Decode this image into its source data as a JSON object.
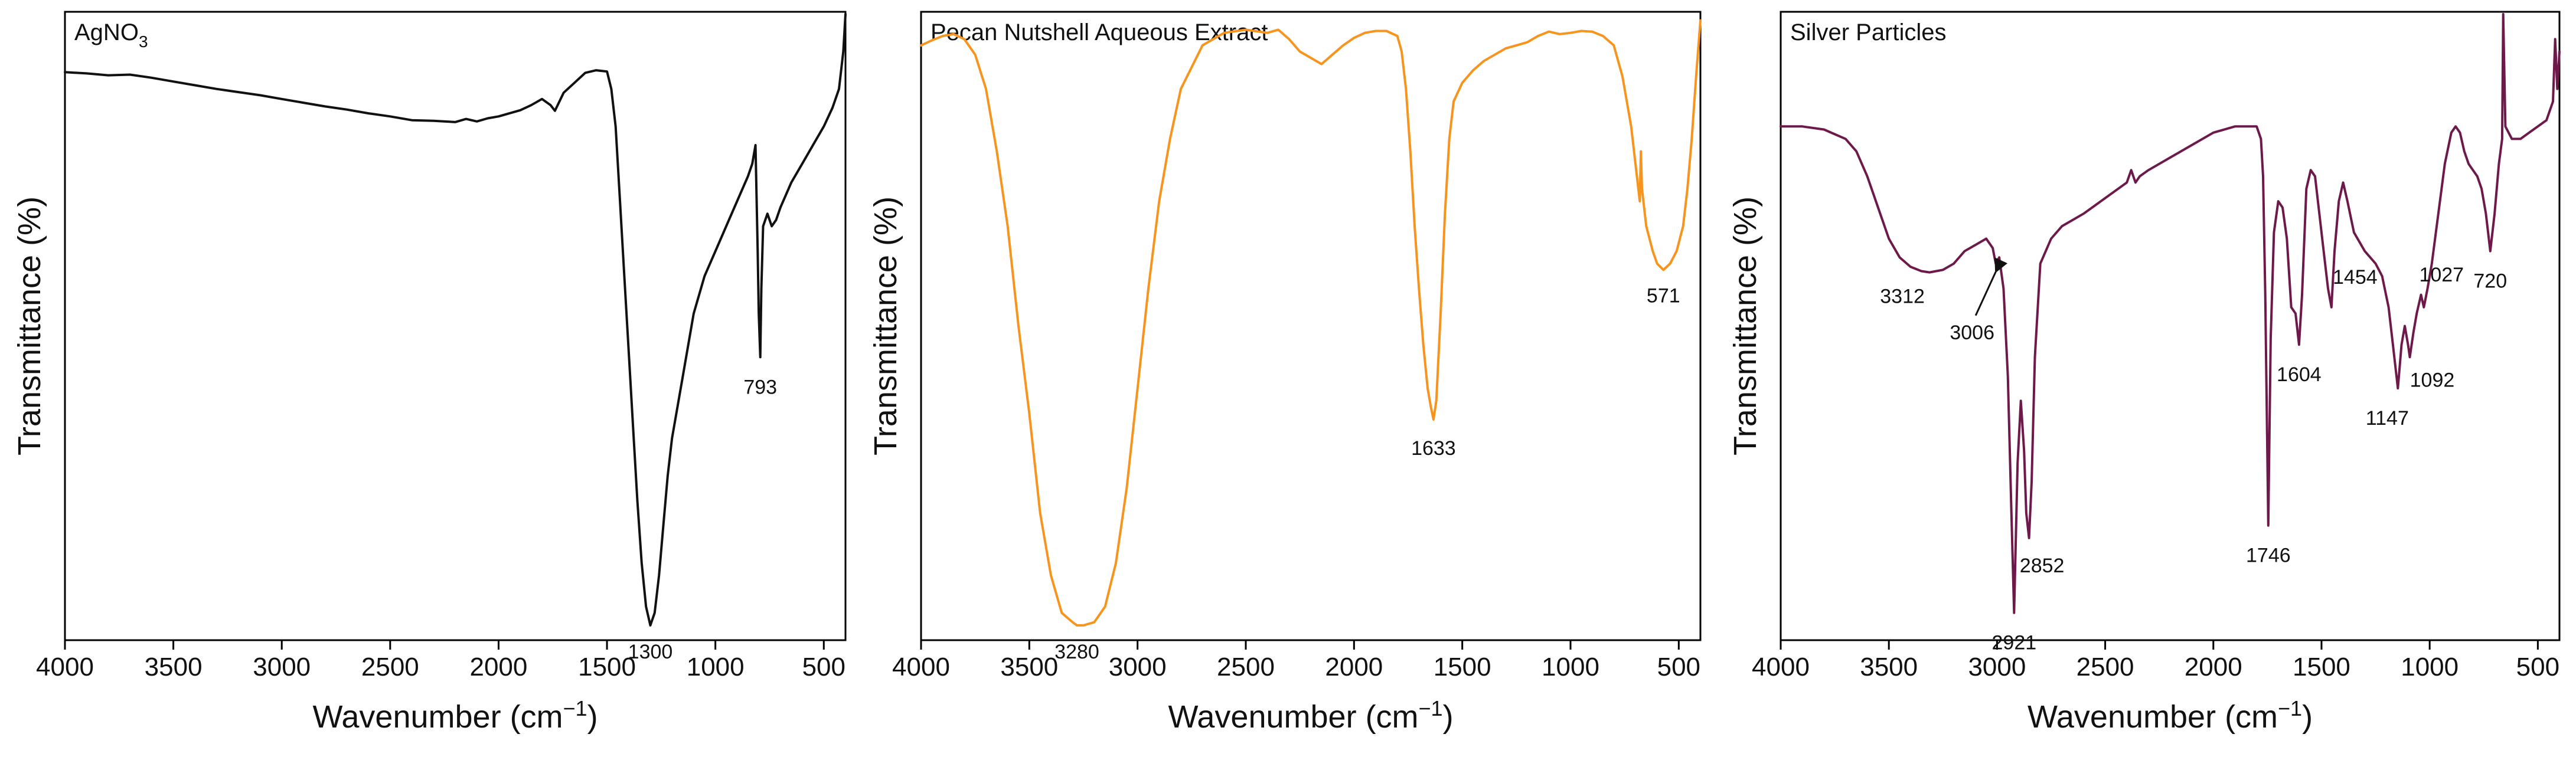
{
  "chart_data": [
    {
      "type": "line",
      "title": "AgNO3",
      "title_main": "AgNO",
      "title_sub": "3",
      "xlabel": "Wavenumber (cm−1)",
      "xlabel_main": "Wavenumber (cm",
      "xlabel_sup": "−1",
      "xlabel_close": ")",
      "ylabel": "Transmittance (%)",
      "xlim": [
        4000,
        400
      ],
      "ylim": [
        0,
        100
      ],
      "x_ticks": [
        4000,
        3500,
        3000,
        2500,
        2000,
        1500,
        1000,
        500
      ],
      "x_tick_labels": [
        "4000",
        "3500",
        "3000",
        "2500",
        "2000",
        "1500",
        "1000",
        "500"
      ],
      "color": "#111111",
      "series": [
        {
          "name": "AgNO3",
          "x": [
            4000,
            3900,
            3800,
            3700,
            3600,
            3500,
            3400,
            3300,
            3200,
            3100,
            3000,
            2900,
            2800,
            2700,
            2600,
            2500,
            2400,
            2300,
            2200,
            2150,
            2100,
            2050,
            2000,
            1950,
            1900,
            1850,
            1800,
            1760,
            1740,
            1700,
            1650,
            1600,
            1550,
            1500,
            1480,
            1460,
            1440,
            1420,
            1400,
            1380,
            1360,
            1340,
            1320,
            1300,
            1280,
            1260,
            1240,
            1220,
            1200,
            1150,
            1100,
            1050,
            1000,
            950,
            900,
            850,
            830,
            815,
            805,
            800,
            793,
            788,
            780,
            760,
            740,
            720,
            700,
            650,
            600,
            550,
            500,
            460,
            430,
            410,
            400
          ],
          "y": [
            90.7,
            90.5,
            90.2,
            90.3,
            89.8,
            89.2,
            88.6,
            88.0,
            87.5,
            87.0,
            86.4,
            85.8,
            85.2,
            84.7,
            84.1,
            83.6,
            83.0,
            82.9,
            82.7,
            83.2,
            82.8,
            83.3,
            83.6,
            84.1,
            84.6,
            85.4,
            86.4,
            85.4,
            84.5,
            87.4,
            89.0,
            90.6,
            91.0,
            90.8,
            88.0,
            82.0,
            70.0,
            58.0,
            46.0,
            34.0,
            22.0,
            12.0,
            5.0,
            2.0,
            4.0,
            10.0,
            18.0,
            26.0,
            32.0,
            42.0,
            52.0,
            58.0,
            62.0,
            66.0,
            70.0,
            74.0,
            76.0,
            79.0,
            62.0,
            52.0,
            45.0,
            56.0,
            66.0,
            68.0,
            66.0,
            67.0,
            69.0,
            73.0,
            76.0,
            79.0,
            82.0,
            85.0,
            88.0,
            94.0,
            100.0
          ]
        }
      ],
      "annotations": [
        {
          "label": "1300",
          "x": 1300,
          "y": 2.0
        },
        {
          "label": "793",
          "x": 793,
          "y": 45.0
        }
      ]
    },
    {
      "type": "line",
      "title": "Pecan Nutshell Aqueous Extract",
      "xlabel": "Wavenumber (cm−1)",
      "xlabel_main": "Wavenumber (cm",
      "xlabel_sup": "−1",
      "xlabel_close": ")",
      "ylabel": "Transmittance (%)",
      "xlim": [
        4000,
        400
      ],
      "ylim": [
        0,
        100
      ],
      "x_ticks": [
        4000,
        3500,
        3000,
        2500,
        2000,
        1500,
        1000,
        500
      ],
      "x_tick_labels": [
        "4000",
        "3500",
        "3000",
        "2500",
        "2000",
        "1500",
        "1000",
        "500"
      ],
      "color": "#F7941D",
      "series": [
        {
          "name": "Pecan Nutshell Aqueous Extract",
          "x": [
            4000,
            3950,
            3900,
            3850,
            3800,
            3750,
            3700,
            3650,
            3600,
            3550,
            3500,
            3450,
            3400,
            3350,
            3300,
            3280,
            3250,
            3200,
            3150,
            3100,
            3050,
            3000,
            2950,
            2900,
            2850,
            2800,
            2700,
            2600,
            2500,
            2400,
            2350,
            2300,
            2250,
            2200,
            2150,
            2100,
            2050,
            2000,
            1950,
            1900,
            1850,
            1800,
            1780,
            1760,
            1740,
            1720,
            1700,
            1680,
            1660,
            1645,
            1633,
            1620,
            1600,
            1580,
            1560,
            1540,
            1500,
            1450,
            1400,
            1350,
            1300,
            1250,
            1200,
            1150,
            1100,
            1050,
            1000,
            950,
            900,
            850,
            800,
            760,
            720,
            700,
            680,
            675,
            670,
            650,
            620,
            600,
            571,
            540,
            510,
            480,
            460,
            440,
            420,
            400
          ],
          "y": [
            95.0,
            95.8,
            96.5,
            96.8,
            96.0,
            93.5,
            88.0,
            78.0,
            66.0,
            50.0,
            36.0,
            20.0,
            10.0,
            4.0,
            2.5,
            2.0,
            2.0,
            2.5,
            5.0,
            12.0,
            24.0,
            40.0,
            56.0,
            70.0,
            80.0,
            88.0,
            95.0,
            97.0,
            97.5,
            97.0,
            97.5,
            96.0,
            94.0,
            93.0,
            92.0,
            93.5,
            95.0,
            96.2,
            97.0,
            97.3,
            97.3,
            96.5,
            94.0,
            88.0,
            78.0,
            66.0,
            56.0,
            47.0,
            40.0,
            37.0,
            35.0,
            38.0,
            52.0,
            68.0,
            80.0,
            86.0,
            89.0,
            91.0,
            92.5,
            93.5,
            94.5,
            95.0,
            95.5,
            96.5,
            97.2,
            96.8,
            97.0,
            97.3,
            97.2,
            96.5,
            95.0,
            90.0,
            82.0,
            76.0,
            70.0,
            78.0,
            72.0,
            66.0,
            62.0,
            60.0,
            59.0,
            60.0,
            62.0,
            66.0,
            72.0,
            80.0,
            90.0,
            99.0
          ]
        }
      ],
      "annotations": [
        {
          "label": "3280",
          "x": 3280,
          "y": 2.0
        },
        {
          "label": "1633",
          "x": 1633,
          "y": 35.0
        },
        {
          "label": "571",
          "x": 571,
          "y": 59.0
        }
      ]
    },
    {
      "type": "line",
      "title": "Silver Particles",
      "xlabel": "Wavenumber (cm−1)",
      "xlabel_main": "Wavenumber (cm",
      "xlabel_sup": "−1",
      "xlabel_close": ")",
      "ylabel": "Transmittance (%)",
      "xlim": [
        4000,
        400
      ],
      "ylim": [
        0,
        100
      ],
      "x_ticks": [
        4000,
        3500,
        3000,
        2500,
        2000,
        1500,
        1000,
        500
      ],
      "x_tick_labels": [
        "4000",
        "3500",
        "3000",
        "2500",
        "2000",
        "1500",
        "1000",
        "500"
      ],
      "color": "#6D1A4A",
      "series": [
        {
          "name": "Silver Particles",
          "x": [
            4000,
            3900,
            3800,
            3700,
            3650,
            3600,
            3550,
            3500,
            3450,
            3400,
            3350,
            3312,
            3250,
            3200,
            3150,
            3100,
            3050,
            3020,
            3006,
            2990,
            2970,
            2950,
            2935,
            2921,
            2905,
            2890,
            2875,
            2865,
            2852,
            2840,
            2825,
            2800,
            2750,
            2700,
            2600,
            2500,
            2400,
            2380,
            2360,
            2340,
            2300,
            2200,
            2100,
            2000,
            1900,
            1850,
            1800,
            1780,
            1770,
            1760,
            1746,
            1735,
            1720,
            1700,
            1680,
            1660,
            1640,
            1620,
            1604,
            1590,
            1570,
            1550,
            1530,
            1510,
            1490,
            1470,
            1454,
            1440,
            1420,
            1400,
            1380,
            1350,
            1300,
            1250,
            1220,
            1190,
            1170,
            1147,
            1130,
            1115,
            1100,
            1092,
            1075,
            1060,
            1040,
            1027,
            1010,
            990,
            960,
            930,
            900,
            880,
            860,
            840,
            820,
            800,
            780,
            760,
            740,
            720,
            700,
            680,
            665,
            660,
            650,
            620,
            580,
            540,
            500,
            460,
            430,
            420,
            410,
            400
          ],
          "y": [
            82.0,
            82.0,
            81.5,
            80.0,
            78.0,
            74.0,
            69.0,
            64.0,
            61.0,
            59.5,
            58.8,
            58.6,
            59.0,
            60.0,
            62.0,
            63.0,
            64.0,
            62.5,
            60.0,
            61.0,
            56.0,
            42.0,
            22.0,
            4.0,
            28.0,
            38.0,
            30.0,
            20.0,
            16.0,
            25.0,
            45.0,
            60.0,
            64.0,
            66.0,
            68.0,
            70.5,
            73.0,
            75.0,
            73.0,
            74.0,
            75.0,
            77.0,
            79.0,
            81.0,
            82.0,
            82.0,
            82.0,
            80.0,
            74.0,
            55.0,
            18.0,
            48.0,
            65.0,
            70.0,
            69.0,
            64.0,
            53.0,
            52.0,
            47.0,
            55.0,
            72.0,
            75.0,
            74.0,
            68.0,
            62.0,
            56.0,
            53.0,
            62.0,
            70.0,
            73.0,
            70.0,
            65.0,
            62.0,
            60.0,
            58.0,
            53.0,
            47.0,
            40.0,
            47.0,
            50.0,
            47.0,
            45.0,
            49.0,
            52.0,
            55.0,
            53.0,
            56.0,
            60.0,
            68.0,
            76.0,
            81.0,
            82.0,
            81.0,
            78.0,
            76.0,
            75.0,
            74.0,
            72.0,
            68.0,
            62.0,
            68.0,
            76.0,
            80.0,
            100.0,
            82.0,
            80.0,
            80.0,
            81.0,
            82.0,
            83.0,
            86.0,
            96.0,
            88.0,
            94.0
          ]
        }
      ],
      "annotations": [
        {
          "label": "3312",
          "x": 3312,
          "y": 58.6
        },
        {
          "label": "3006",
          "x": 3006,
          "y": 60.0
        },
        {
          "label": "2921",
          "x": 2921,
          "y": 4.0
        },
        {
          "label": "2852",
          "x": 2852,
          "y": 16.0
        },
        {
          "label": "1746",
          "x": 1746,
          "y": 18.0
        },
        {
          "label": "1604",
          "x": 1604,
          "y": 47.0
        },
        {
          "label": "1454",
          "x": 1454,
          "y": 53.0
        },
        {
          "label": "1147",
          "x": 1147,
          "y": 40.0
        },
        {
          "label": "1092",
          "x": 1092,
          "y": 45.0
        },
        {
          "label": "1027",
          "x": 1027,
          "y": 53.0
        },
        {
          "label": "720",
          "x": 720,
          "y": 62.0
        }
      ]
    }
  ]
}
